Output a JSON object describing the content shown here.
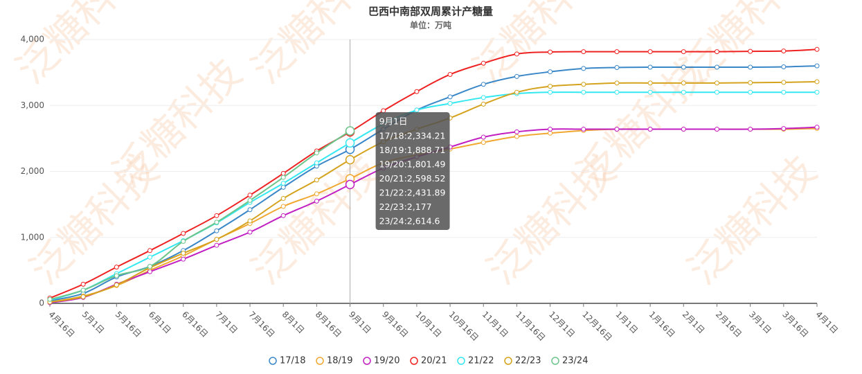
{
  "chart_data": {
    "type": "line",
    "title": "巴西中南部双周累计产糖量",
    "subtitle": "单位：万吨",
    "watermark": "泛糖科技",
    "categories": [
      "4月16日",
      "5月1日",
      "5月16日",
      "6月1日",
      "6月16日",
      "7月1日",
      "7月16日",
      "8月1日",
      "8月16日",
      "9月1日",
      "9月16日",
      "10月1日",
      "10月16日",
      "11月1日",
      "11月16日",
      "12月1日",
      "12月16日",
      "1月1日",
      "1月16日",
      "2月1日",
      "2月16日",
      "3月1日",
      "3月16日",
      "4月1日"
    ],
    "ylim": [
      0,
      4000
    ],
    "yticks": [
      0,
      {
        "value": 1000,
        "label": "1,000"
      },
      {
        "value": 2000,
        "label": "2,000"
      },
      {
        "value": 3000,
        "label": "3,000"
      },
      {
        "value": 4000,
        "label": "4,000"
      }
    ],
    "grid": true,
    "legend": "bottom",
    "series": [
      {
        "name": "17/18",
        "color": "#3a87c8",
        "values": [
          40,
          150,
          400,
          560,
          800,
          1100,
          1420,
          1760,
          2080,
          2334.21,
          2640,
          2930,
          3130,
          3320,
          3440,
          3510,
          3560,
          3575,
          3580,
          3580,
          3580,
          3580,
          3585,
          3600
        ]
      },
      {
        "name": "18/19",
        "color": "#f0a830",
        "values": [
          20,
          110,
          270,
          500,
          720,
          970,
          1210,
          1470,
          1660,
          1888.71,
          2130,
          2250,
          2340,
          2440,
          2530,
          2580,
          2620,
          2640,
          2640,
          2640,
          2640,
          2640,
          2640,
          2650
        ]
      },
      {
        "name": "19/20",
        "color": "#c21fc2",
        "values": [
          10,
          90,
          290,
          480,
          670,
          880,
          1080,
          1330,
          1550,
          1801.49,
          2050,
          2220,
          2370,
          2520,
          2600,
          2640,
          2640,
          2640,
          2640,
          2640,
          2640,
          2640,
          2650,
          2670
        ]
      },
      {
        "name": "20/21",
        "color": "#ee2222",
        "values": [
          80,
          290,
          550,
          800,
          1060,
          1330,
          1640,
          1970,
          2310,
          2598.52,
          2920,
          3210,
          3470,
          3640,
          3780,
          3810,
          3815,
          3815,
          3815,
          3815,
          3815,
          3820,
          3825,
          3850
        ]
      },
      {
        "name": "21/22",
        "color": "#33e8f0",
        "values": [
          50,
          200,
          450,
          700,
          950,
          1220,
          1530,
          1820,
          2130,
          2431.89,
          2720,
          2930,
          3030,
          3120,
          3180,
          3200,
          3200,
          3200,
          3200,
          3200,
          3200,
          3200,
          3200,
          3200
        ]
      },
      {
        "name": "22/23",
        "color": "#d4a21c",
        "values": [
          20,
          100,
          280,
          540,
          760,
          970,
          1250,
          1590,
          1870,
          2177,
          2450,
          2640,
          2810,
          3020,
          3200,
          3290,
          3320,
          3340,
          3340,
          3340,
          3340,
          3345,
          3350,
          3360
        ]
      },
      {
        "name": "23/24",
        "color": "#6cc58a",
        "values": [
          60,
          200,
          420,
          560,
          940,
          1230,
          1560,
          1910,
          2280,
          2614.6,
          null,
          null,
          null,
          null,
          null,
          null,
          null,
          null,
          null,
          null,
          null,
          null,
          null,
          null
        ]
      }
    ],
    "tooltip": {
      "title": "9月1日",
      "lines": [
        "17/18:2,334.21",
        "18/19:1,888.71",
        "19/20:1,801.49",
        "20/21:2,598.52",
        "21/22:2,431.89",
        "22/23:2,177",
        "23/24:2,614.6"
      ]
    }
  }
}
